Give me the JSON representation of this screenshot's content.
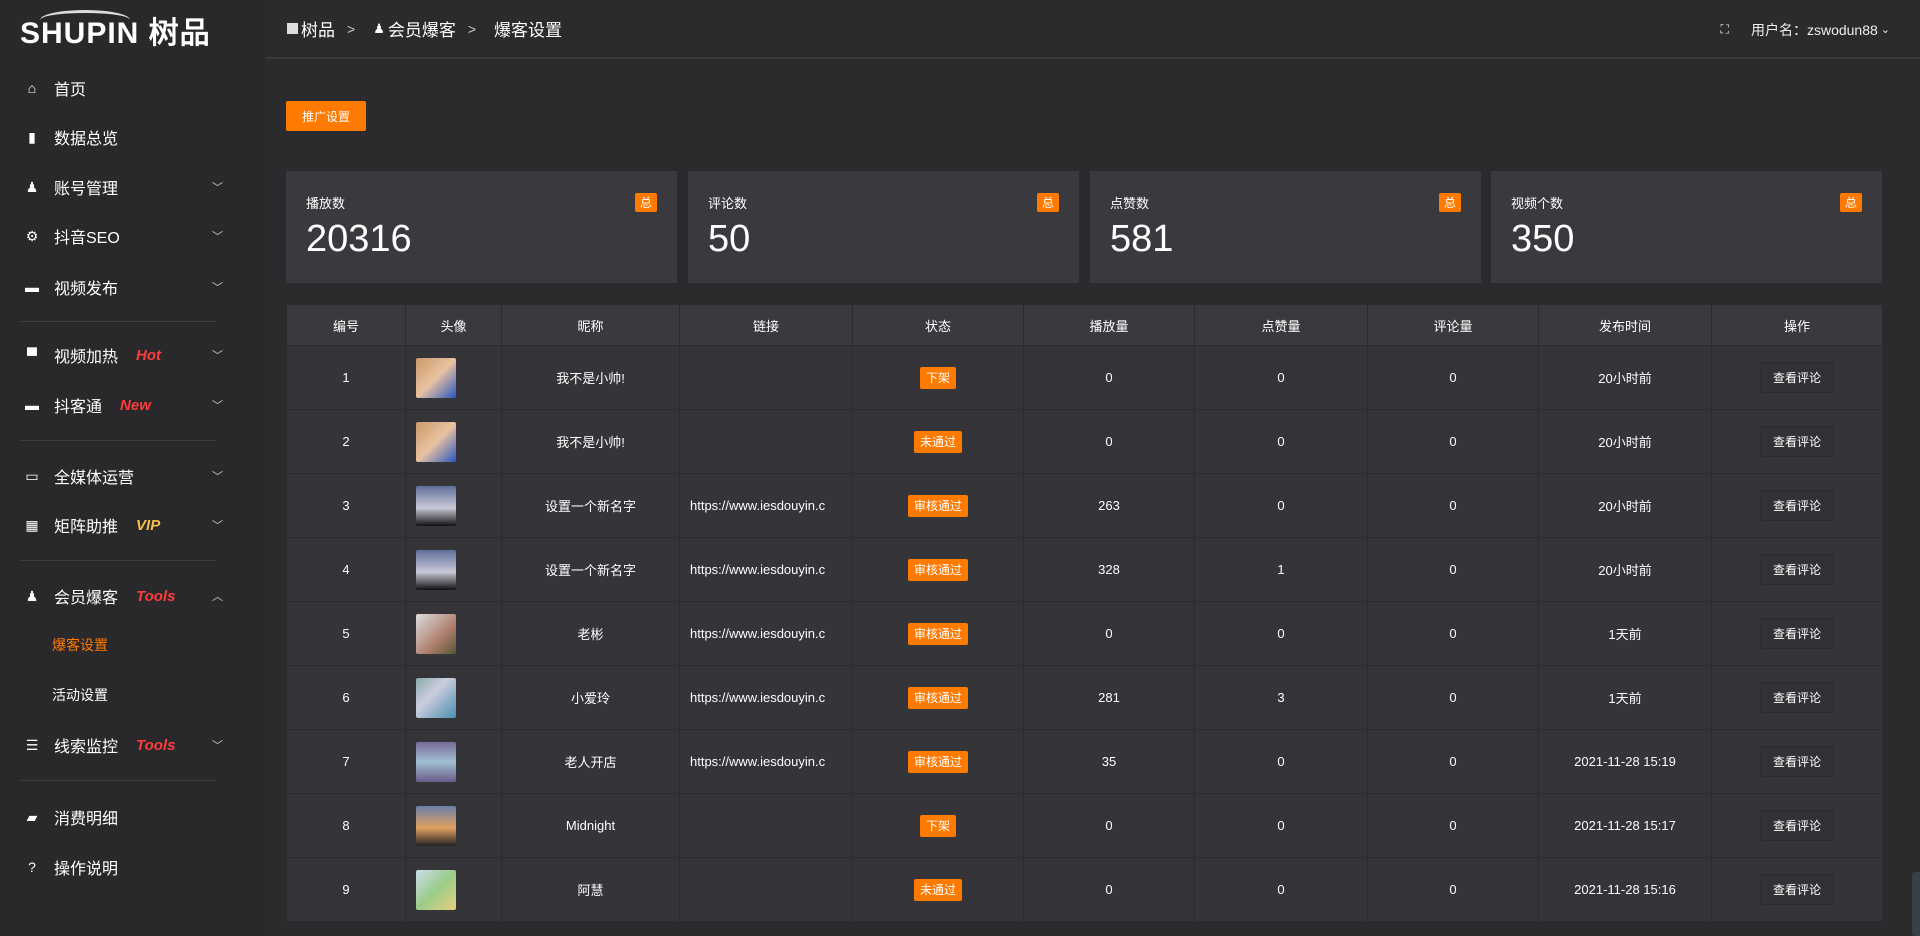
{
  "logo": {
    "text": "SHUPIN 树品"
  },
  "sidebar": {
    "items": [
      {
        "icon": "home-icon",
        "label": "首页"
      },
      {
        "icon": "bar-chart-icon",
        "label": "数据总览"
      },
      {
        "icon": "user-icon",
        "label": "账号管理",
        "chevron": "down"
      },
      {
        "icon": "gear-icon",
        "label": "抖音SEO",
        "chevron": "down"
      },
      {
        "icon": "video-camera-icon",
        "label": "视频发布",
        "chevron": "down"
      },
      {
        "icon": "signboard-icon",
        "label": "视频加热",
        "tag": "Hot",
        "tag_color": "#ff3b3b",
        "chevron": "down"
      },
      {
        "icon": "chat-icon",
        "label": "抖客通",
        "tag": "New",
        "tag_color": "#ff3b3b",
        "chevron": "down"
      },
      {
        "icon": "monitor-icon",
        "label": "全媒体运营",
        "chevron": "down"
      },
      {
        "icon": "grid-icon",
        "label": "矩阵助推",
        "tag": "VIP",
        "tag_color": "#f5c04a",
        "chevron": "down"
      },
      {
        "icon": "user-icon",
        "label": "会员爆客",
        "tag": "Tools",
        "tag_color": "#ff3b3b",
        "chevron": "up"
      },
      {
        "label": "爆客设置",
        "active": true
      },
      {
        "label": "活动设置"
      },
      {
        "icon": "sliders-icon",
        "label": "线索监控",
        "tag": "Tools",
        "tag_color": "#ff3b3b",
        "chevron": "down"
      },
      {
        "icon": "wallet-icon",
        "label": "消费明细"
      },
      {
        "icon": "help-icon",
        "label": "操作说明"
      }
    ]
  },
  "header": {
    "breadcrumb": [
      "树品",
      "会员爆客",
      "爆客设置"
    ],
    "user_label": "用户名：zswodun88"
  },
  "toolbar": {
    "promo_button": "推广设置"
  },
  "accent": "#ff7a00",
  "stats": [
    {
      "label": "播放数",
      "value": "20316",
      "badge": "总"
    },
    {
      "label": "评论数",
      "value": "50",
      "badge": "总"
    },
    {
      "label": "点赞数",
      "value": "581",
      "badge": "总"
    },
    {
      "label": "视频个数",
      "value": "350",
      "badge": "总"
    }
  ],
  "table": {
    "headers": [
      "编号",
      "头像",
      "昵称",
      "链接",
      "状态",
      "播放量",
      "点赞量",
      "评论量",
      "发布时间",
      "操作"
    ],
    "rows": [
      {
        "id": "1",
        "name": "我不是小帅!",
        "link": "",
        "status": "下架",
        "plays": "0",
        "likes": "0",
        "comments": "0",
        "time": "20小时前",
        "action": "查看评论"
      },
      {
        "id": "2",
        "name": "我不是小帅!",
        "link": "",
        "status": "未通过",
        "plays": "0",
        "likes": "0",
        "comments": "0",
        "time": "20小时前",
        "action": "查看评论"
      },
      {
        "id": "3",
        "name": "设置一个新名字",
        "link": "https://www.iesdouyin.c",
        "status": "审核通过",
        "plays": "263",
        "likes": "0",
        "comments": "0",
        "time": "20小时前",
        "action": "查看评论"
      },
      {
        "id": "4",
        "name": "设置一个新名字",
        "link": "https://www.iesdouyin.c",
        "status": "审核通过",
        "plays": "328",
        "likes": "1",
        "comments": "0",
        "time": "20小时前",
        "action": "查看评论"
      },
      {
        "id": "5",
        "name": "老彬",
        "link": "https://www.iesdouyin.c",
        "status": "审核通过",
        "plays": "0",
        "likes": "0",
        "comments": "0",
        "time": "1天前",
        "action": "查看评论"
      },
      {
        "id": "6",
        "name": "小爱玲",
        "link": "https://www.iesdouyin.c",
        "status": "审核通过",
        "plays": "281",
        "likes": "3",
        "comments": "0",
        "time": "1天前",
        "action": "查看评论"
      },
      {
        "id": "7",
        "name": "老人开店",
        "link": "https://www.iesdouyin.c",
        "status": "审核通过",
        "plays": "35",
        "likes": "0",
        "comments": "0",
        "time": "2021-11-28 15:19",
        "action": "查看评论"
      },
      {
        "id": "8",
        "name": "Midnight",
        "link": "",
        "status": "下架",
        "plays": "0",
        "likes": "0",
        "comments": "0",
        "time": "2021-11-28 15:17",
        "action": "查看评论"
      },
      {
        "id": "9",
        "name": "阿慧",
        "link": "",
        "status": "未通过",
        "plays": "0",
        "likes": "0",
        "comments": "0",
        "time": "2021-11-28 15:16",
        "action": "查看评论"
      }
    ]
  }
}
